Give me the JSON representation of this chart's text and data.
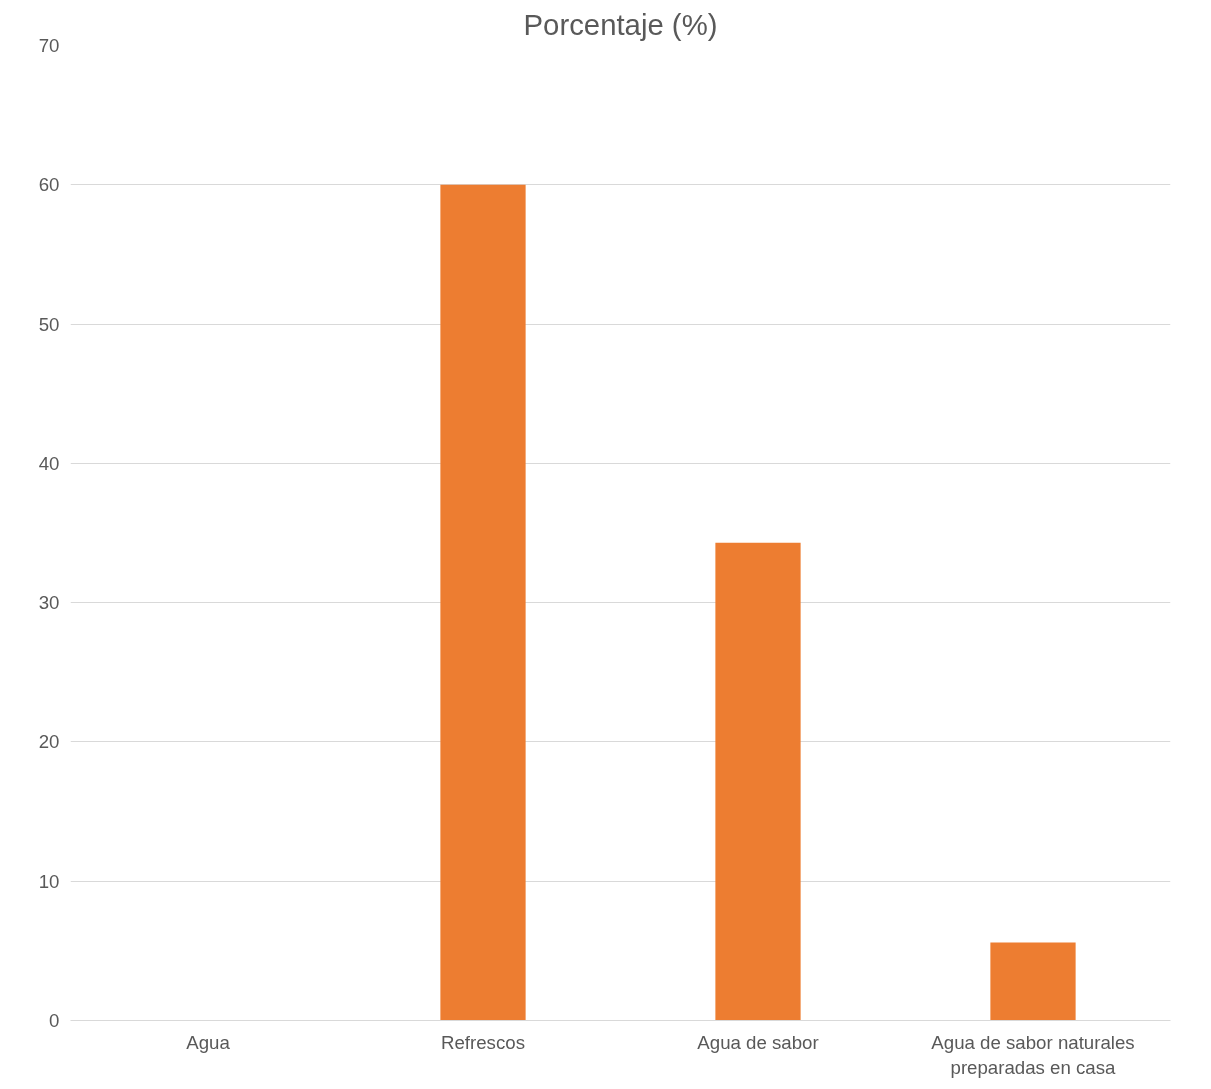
{
  "chart_data": {
    "type": "bar",
    "title": "Porcentaje (%)",
    "categories": [
      "Agua",
      "Refrescos",
      "Agua de sabor",
      "Agua de sabor naturales preparadas en casa"
    ],
    "values": [
      0,
      60,
      34.3,
      5.6
    ],
    "color": "#ed7d31",
    "ylim": [
      0,
      70
    ],
    "yticks": [
      0,
      10,
      20,
      30,
      40,
      50,
      60,
      70
    ],
    "grid": "y"
  }
}
